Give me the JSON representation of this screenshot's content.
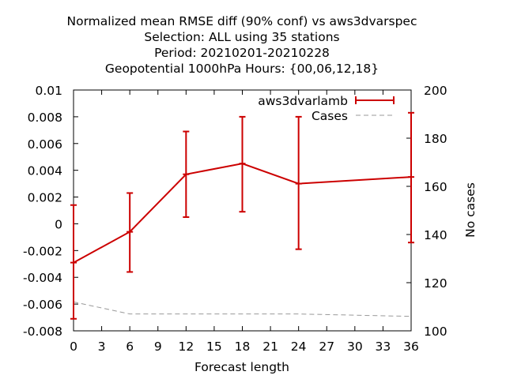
{
  "chart_data": {
    "type": "line",
    "title_lines": [
      "Normalized mean RMSE diff (90% conf) vs aws3dvarspec",
      "Selection: ALL using    35 stations",
      "Period: 20210201-20210228",
      "Geopotential 1000hPa   Hours: {00,06,12,18}"
    ],
    "xlabel": "Forecast length",
    "ylabel": "",
    "y2label": "No cases",
    "xlim": [
      0,
      36
    ],
    "ylim": [
      -0.008,
      0.01
    ],
    "y2lim": [
      100,
      200
    ],
    "x_ticks": [
      "0",
      "3",
      "6",
      "9",
      "12",
      "15",
      "18",
      "21",
      "24",
      "27",
      "30",
      "33",
      "36"
    ],
    "y_ticks": [
      "0.01",
      "0.008",
      "0.006",
      "0.004",
      "0.002",
      "0",
      "-0.002",
      "-0.004",
      "-0.006",
      "-0.008"
    ],
    "y2_ticks": [
      "200",
      "180",
      "160",
      "140",
      "120",
      "100"
    ],
    "grid": false,
    "legend_position": "top-right",
    "series": [
      {
        "name": "aws3dvarlamb",
        "color": "#cc0000",
        "style": "solid-errorbars",
        "axis": "left",
        "x": [
          0,
          6,
          12,
          18,
          24,
          36
        ],
        "y": [
          -0.0029,
          -0.0006,
          0.0037,
          0.0045,
          0.003,
          0.0035
        ],
        "y_low": [
          -0.0071,
          -0.0036,
          0.0005,
          0.0009,
          -0.0019,
          -0.0014
        ],
        "y_high": [
          0.0014,
          0.0023,
          0.0069,
          0.008,
          0.008,
          0.0083
        ]
      },
      {
        "name": "Cases",
        "color": "#999999",
        "style": "dashed",
        "axis": "right",
        "x": [
          0,
          6,
          12,
          18,
          24,
          30,
          36
        ],
        "y": [
          112,
          107,
          107,
          107,
          107,
          106.5,
          106
        ]
      }
    ]
  }
}
